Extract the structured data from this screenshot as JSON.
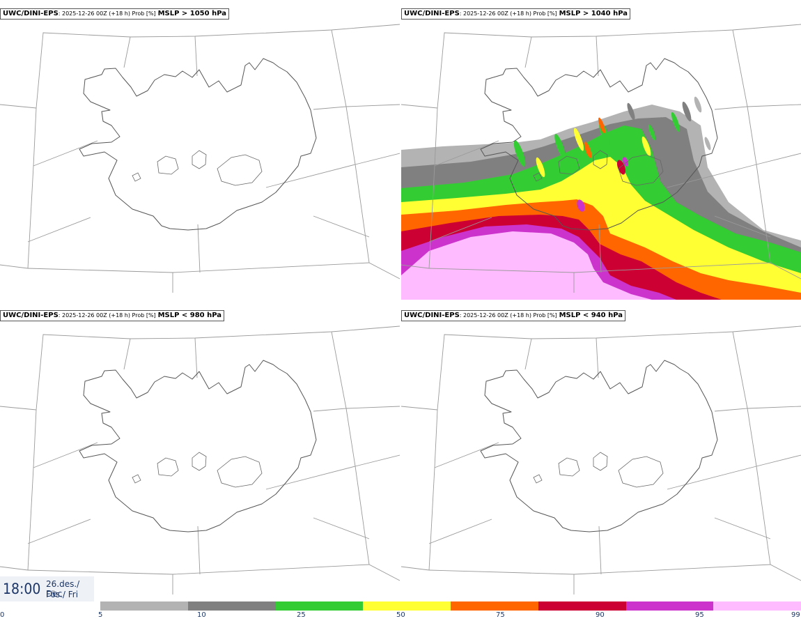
{
  "panels": [
    {
      "model": "UWC/DINI-EPS",
      "meta": ": 2025-12-26 00Z (+18 h) Prob [%]",
      "field": "MSLP > 1050 hPa",
      "has_field": false
    },
    {
      "model": "UWC/DINI-EPS",
      "meta": ": 2025-12-26 00Z (+18 h) Prob [%]",
      "field": "MSLP > 1040 hPa",
      "has_field": true
    },
    {
      "model": "UWC/DINI-EPS",
      "meta": ": 2025-12-26 00Z (+18 h) Prob [%]",
      "field": "MSLP < 980 hPa",
      "has_field": false
    },
    {
      "model": "UWC/DINI-EPS",
      "meta": ": 2025-12-26 00Z (+18 h) Prob [%]",
      "field": "MSLP < 940 hPa",
      "has_field": false
    }
  ],
  "valid_time": {
    "time": "18:00",
    "date_line1": "26.des./ Dec",
    "date_line2": "Fös./ Fri"
  },
  "legend": {
    "ticks": [
      "0",
      "5",
      "10",
      "25",
      "50",
      "75",
      "90",
      "95",
      "99"
    ],
    "colors": [
      "#b3b3b3",
      "#808080",
      "#33cc33",
      "#ffff33",
      "#ff6600",
      "#cc0033",
      "#cc33cc",
      "#ffbbff"
    ]
  }
}
